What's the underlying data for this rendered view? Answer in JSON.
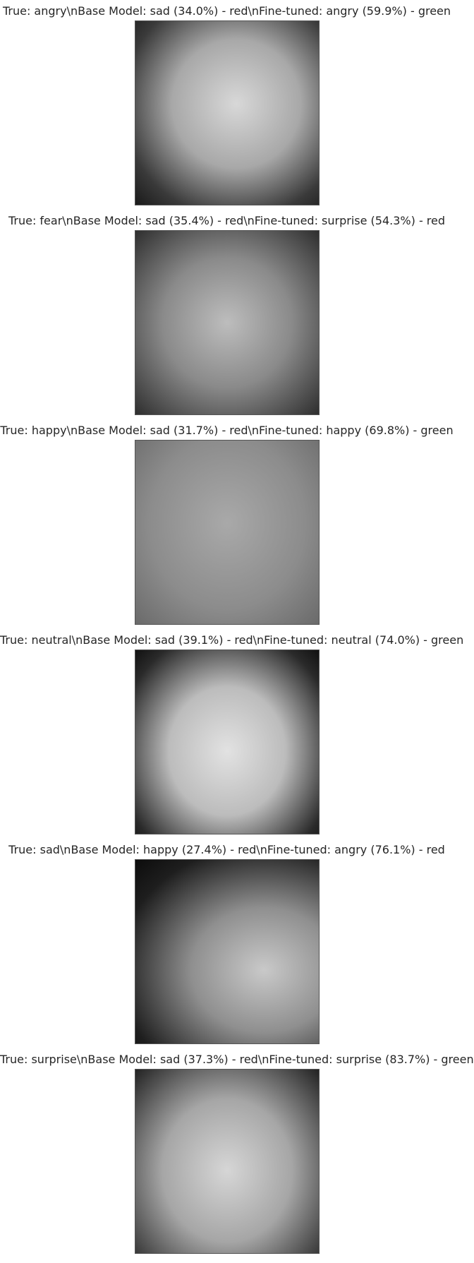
{
  "panels": [
    {
      "title": "True: angry\\nBase Model: sad (34.0%) - red\\nFine-tuned: angry (59.9%) - green"
    },
    {
      "title": "True: fear\\nBase Model: sad (35.4%) - red\\nFine-tuned: surprise (54.3%) - red"
    },
    {
      "title": "True: happy\\nBase Model: sad (31.7%) - red\\nFine-tuned: happy (69.8%) - green"
    },
    {
      "title": "True: neutral\\nBase Model: sad (39.1%) - red\\nFine-tuned: neutral (74.0%) - green"
    },
    {
      "title": "True: sad\\nBase Model: happy (27.4%) - red\\nFine-tuned: angry (76.1%) - red"
    },
    {
      "title": "True: surprise\\nBase Model: sad (37.3%) - red\\nFine-tuned: surprise (83.7%) - green"
    }
  ]
}
